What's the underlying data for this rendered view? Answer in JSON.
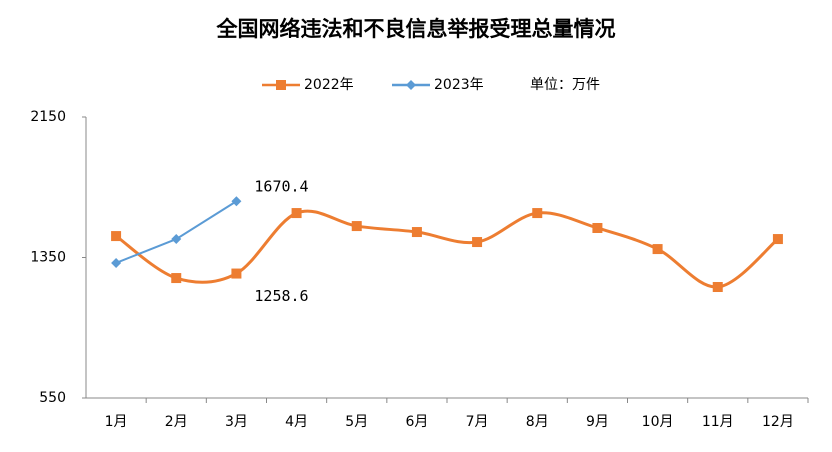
{
  "chart_data": {
    "type": "line",
    "title": "全国网络违法和不良信息举报受理总量情况",
    "unit": "单位：万件",
    "categories": [
      "1月",
      "2月",
      "3月",
      "4月",
      "5月",
      "6月",
      "7月",
      "8月",
      "9月",
      "10月",
      "11月",
      "12月"
    ],
    "series": [
      {
        "name": "2022年",
        "color": "#ed7d31",
        "marker": "square",
        "smooth": true,
        "values": [
          1472,
          1233,
          1258.6,
          1603,
          1529,
          1495,
          1438,
          1603,
          1518,
          1398,
          1182,
          1455
        ],
        "value_labels": [
          null,
          null,
          "1258.6",
          null,
          null,
          null,
          null,
          null,
          null,
          null,
          null,
          null
        ]
      },
      {
        "name": "2023年",
        "color": "#5b9bd5",
        "marker": "diamond",
        "smooth": false,
        "values": [
          1319,
          1455,
          1670.4,
          null,
          null,
          null,
          null,
          null,
          null,
          null,
          null,
          null
        ],
        "value_labels": [
          null,
          null,
          "1670.4",
          null,
          null,
          null,
          null,
          null,
          null,
          null,
          null,
          null
        ]
      }
    ],
    "ylim": [
      550,
      2150
    ],
    "yticks": [
      550,
      1350,
      2150
    ],
    "grid": false
  }
}
